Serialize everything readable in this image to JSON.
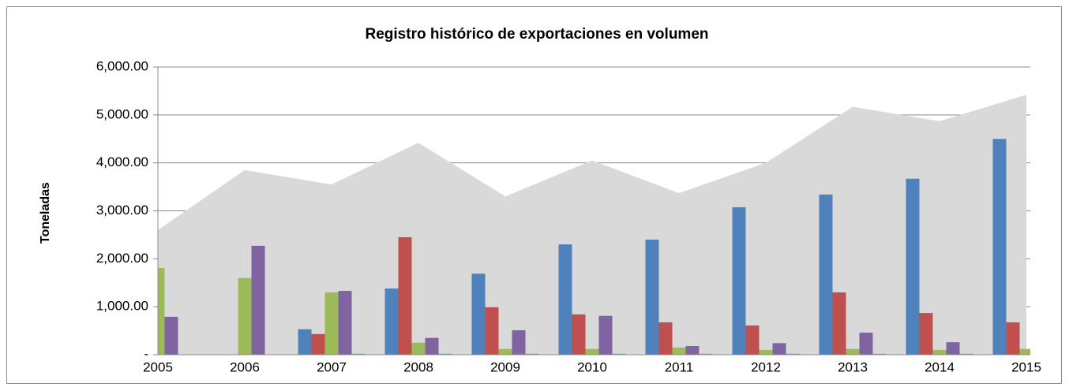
{
  "chart_data": {
    "type": "bar",
    "title": "Registro histórico de exportaciones en volumen",
    "y_label": "Toneladas",
    "categories": [
      "2005",
      "2006",
      "2007",
      "2008",
      "2009",
      "2010",
      "2011",
      "2012",
      "2013",
      "2014",
      "2015"
    ],
    "series": [
      {
        "type": "area",
        "color": "#d9d9d9",
        "values": [
          2600,
          3850,
          3550,
          4420,
          3300,
          4050,
          3370,
          4000,
          5170,
          4870,
          5420
        ]
      },
      {
        "color": "#4f81bd",
        "values": [
          0,
          0,
          530,
          1380,
          1690,
          2300,
          2400,
          3075,
          3340,
          3670,
          4500
        ]
      },
      {
        "color": "#c0504d",
        "values": [
          0,
          0,
          430,
          2450,
          990,
          840,
          675,
          610,
          1300,
          870,
          675
        ]
      },
      {
        "color": "#9bbb59",
        "values": [
          1810,
          1600,
          1300,
          250,
          120,
          120,
          150,
          100,
          120,
          100,
          120
        ]
      },
      {
        "color": "#8064a2",
        "values": [
          790,
          2270,
          1330,
          350,
          510,
          810,
          180,
          240,
          460,
          260,
          null
        ]
      },
      {
        "color": "#4bacc6",
        "values": [
          0,
          0,
          20,
          20,
          20,
          20,
          20,
          20,
          20,
          20,
          null
        ]
      }
    ],
    "ylim": [
      0,
      6000
    ],
    "yticks": [
      {
        "value": 0,
        "label": "-"
      },
      {
        "value": 1000,
        "label": "1,000.00"
      },
      {
        "value": 2000,
        "label": "2,000.00"
      },
      {
        "value": 3000,
        "label": "3,000.00"
      },
      {
        "value": 4000,
        "label": "4,000.00"
      },
      {
        "value": 5000,
        "label": "5,000.00"
      },
      {
        "value": 6000,
        "label": "6,000.00"
      }
    ],
    "grid": true
  }
}
